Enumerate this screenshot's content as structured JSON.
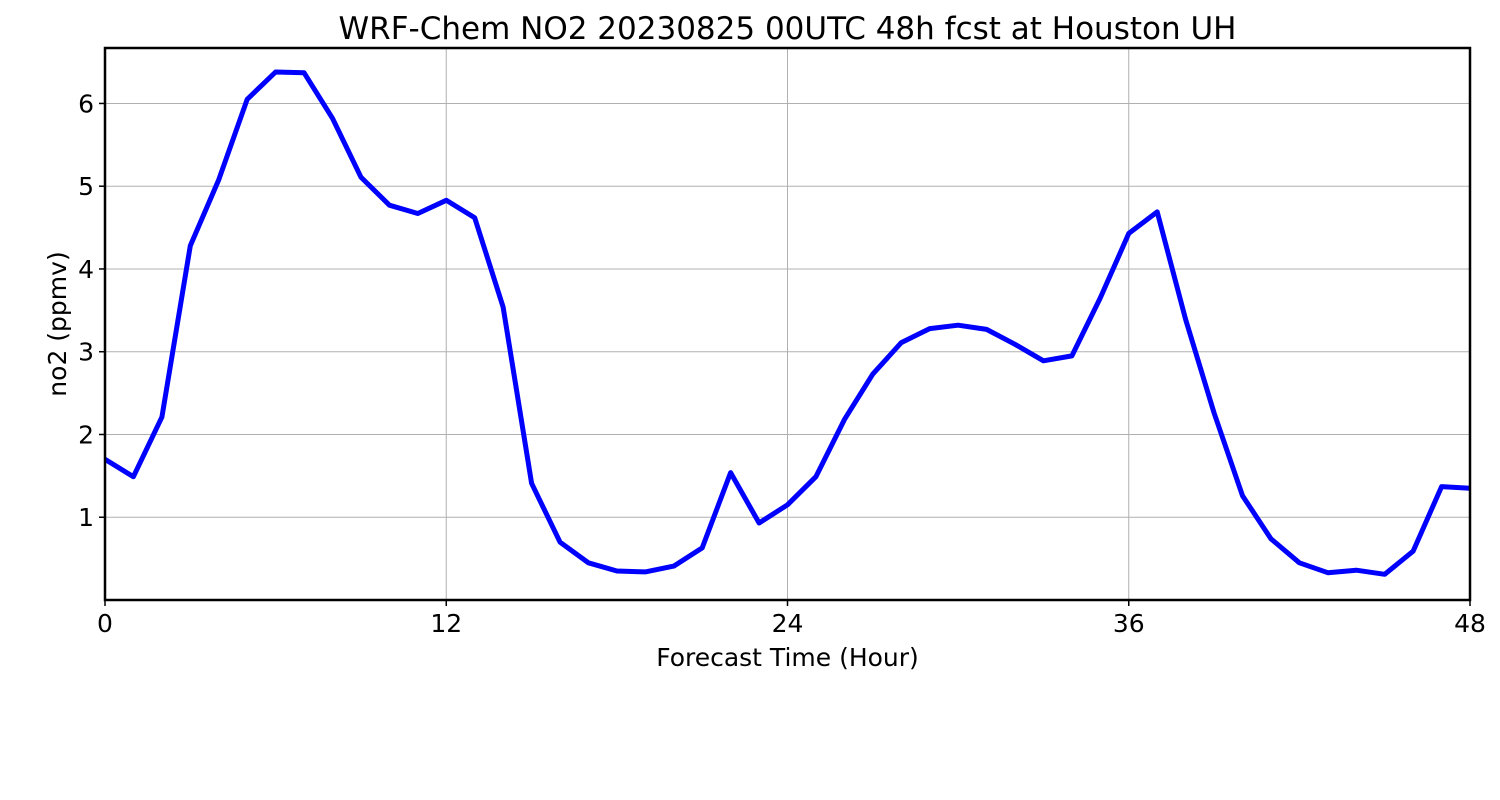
{
  "chart_data": {
    "type": "line",
    "title": "WRF-Chem NO2  20230825 00UTC 48h fcst at Houston UH",
    "xlabel": "Forecast Time (Hour)",
    "ylabel": "no2  (ppmv)",
    "xlim": [
      0,
      48
    ],
    "ylim": [
      0,
      6.67
    ],
    "x_ticks": [
      0,
      12,
      24,
      36,
      48
    ],
    "y_ticks": [
      1,
      2,
      3,
      4,
      5,
      6
    ],
    "x_tick_labels": [
      "0",
      "12",
      "24",
      "36",
      "48"
    ],
    "y_tick_labels": [
      "1",
      "2",
      "3",
      "4",
      "5",
      "6"
    ],
    "grid": true,
    "line_color": "#0000ff",
    "series": [
      {
        "x": [
          0,
          1,
          2,
          3,
          4,
          5,
          6,
          7,
          8,
          9,
          10,
          11,
          12,
          13,
          14,
          15,
          16,
          17,
          18,
          19,
          20,
          21,
          22,
          23,
          24,
          25,
          26,
          27,
          28,
          29,
          30,
          31,
          32,
          33,
          34,
          35,
          36,
          37,
          38,
          39,
          40,
          41,
          42,
          43,
          44,
          45,
          46,
          47,
          48
        ],
        "values": [
          1.7,
          1.49,
          2.21,
          4.28,
          5.08,
          6.05,
          6.38,
          6.37,
          5.82,
          5.11,
          4.77,
          4.67,
          4.83,
          4.62,
          3.54,
          1.41,
          0.7,
          0.45,
          0.35,
          0.34,
          0.41,
          0.63,
          1.54,
          0.93,
          1.15,
          1.49,
          2.18,
          2.73,
          3.11,
          3.28,
          3.32,
          3.27,
          3.09,
          2.89,
          2.95,
          3.65,
          4.43,
          4.69,
          3.39,
          2.26,
          1.26,
          0.74,
          0.45,
          0.33,
          0.36,
          0.31,
          0.59,
          1.37,
          1.35
        ]
      }
    ]
  }
}
